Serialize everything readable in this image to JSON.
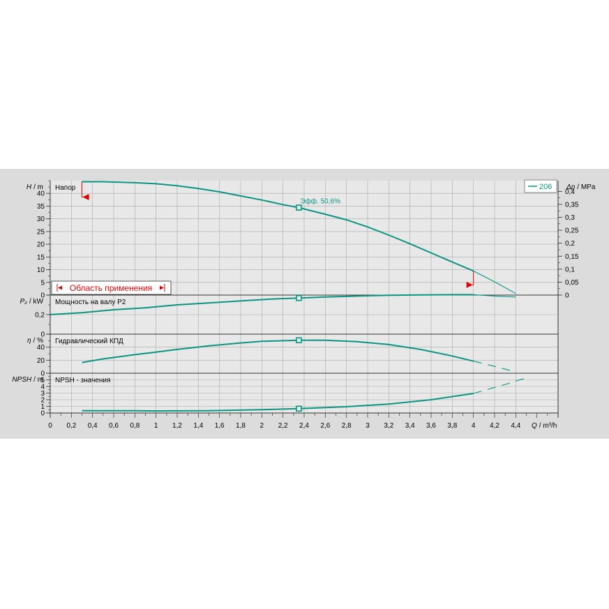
{
  "chart_data": {
    "type": "line",
    "colors": {
      "curve": "#0a9482",
      "range": "#e00000",
      "grid": "#a8a8a8",
      "background": "#dcdcdc",
      "plot": "#e8e8e8"
    },
    "legend": {
      "label": "206",
      "placement": "top-right"
    },
    "x_axis": {
      "label_symbol": "Q",
      "label_unit": "/ m³/h",
      "xlim": [
        0,
        4.8
      ],
      "ticks": [
        0,
        0.2,
        0.4,
        0.6,
        0.8,
        1,
        1.2,
        1.4,
        1.6,
        1.8,
        2,
        2.2,
        2.4,
        2.6,
        2.8,
        3,
        3.2,
        3.4,
        3.6,
        3.8,
        4,
        4.2,
        4.4
      ],
      "tick_labels": [
        "0",
        "0,2",
        "0,4",
        "0,6",
        "0,8",
        "1",
        "1,2",
        "1,4",
        "1,6",
        "1,8",
        "2",
        "2,2",
        "2,4",
        "2,6",
        "2,8",
        "3",
        "3,2",
        "3,4",
        "3,6",
        "3,8",
        "4",
        "4,2",
        "4,4"
      ]
    },
    "operating_point": {
      "x": 2.35,
      "label": "Эфф.  50,6%"
    },
    "application_range": {
      "label": "Область применения",
      "x_min": 0.3,
      "x_max": 4.0
    },
    "panels": [
      {
        "id": "head",
        "title": "Напор",
        "y_symbol": "H",
        "y_unit": "/ m",
        "ylim": [
          0,
          45
        ],
        "ticks": [
          0,
          5,
          10,
          15,
          20,
          25,
          30,
          35,
          40
        ],
        "tick_labels": [
          "0",
          "5",
          "10",
          "15",
          "20",
          "25",
          "30",
          "35",
          "40"
        ],
        "right_axis": {
          "symbol": "Δp",
          "unit": "/ MPa",
          "ticks": [
            0,
            0.05,
            0.1,
            0.15,
            0.2,
            0.25,
            0.3,
            0.35,
            0.4
          ],
          "tick_labels": [
            "0",
            "0,05",
            "0,1",
            "0,15",
            "0,2",
            "0,25",
            "0,3",
            "0,35",
            "0,4"
          ],
          "factor": 0.00980665
        },
        "series": [
          {
            "x": [
              0.3,
              0.5,
              0.8,
              1.0,
              1.2,
              1.4,
              1.6,
              1.8,
              2.0,
              2.2,
              2.35,
              2.6,
              2.8,
              3.0,
              3.2,
              3.4,
              3.6,
              3.8,
              4.0
            ],
            "y": [
              44.6,
              44.6,
              44.2,
              43.8,
              43.0,
              41.9,
              40.6,
              39.0,
              37.4,
              35.6,
              34.4,
              31.8,
              29.6,
              26.8,
              23.6,
              20.2,
              16.6,
              13.0,
              9.5
            ],
            "style": "solid"
          },
          {
            "x": [
              4.0,
              4.2,
              4.4
            ],
            "y": [
              9.5,
              5.2,
              0.6
            ],
            "style": "thin"
          }
        ]
      },
      {
        "id": "power",
        "title": "Мощность на валу P2",
        "y_symbol": "P₂",
        "y_unit": "/ kW",
        "ylim": [
          0,
          0.4
        ],
        "ticks": [
          0,
          0.2
        ],
        "tick_labels": [
          "0",
          "0,2"
        ],
        "series": [
          {
            "x": [
              0,
              0.3,
              0.6,
              0.9,
              1.2,
              1.5,
              1.8,
              2.1,
              2.35,
              2.6,
              2.9,
              3.2,
              3.5,
              3.8,
              4.0
            ],
            "y": [
              0.2,
              0.22,
              0.25,
              0.27,
              0.3,
              0.32,
              0.34,
              0.36,
              0.37,
              0.38,
              0.39,
              0.398,
              0.402,
              0.404,
              0.404
            ],
            "style": "solid"
          },
          {
            "x": [
              4.0,
              4.2,
              4.4
            ],
            "y": [
              0.404,
              0.39,
              0.38
            ],
            "style": "thin"
          }
        ]
      },
      {
        "id": "efficiency",
        "title": "Гидравлический КПД",
        "y_symbol": "η",
        "y_unit": "/ %",
        "ylim": [
          0,
          60
        ],
        "ticks": [
          0,
          20,
          40
        ],
        "tick_labels": [
          "0",
          "20",
          "40"
        ],
        "series": [
          {
            "x": [
              0.3,
              0.5,
              0.8,
              1.0,
              1.2,
              1.5,
              1.8,
              2.0,
              2.35,
              2.6,
              2.9,
              3.2,
              3.5,
              3.8,
              4.0
            ],
            "y": [
              16.5,
              22,
              28.5,
              32.5,
              36.5,
              42,
              46.5,
              49,
              50.6,
              50.6,
              48.5,
              44,
              36.5,
              26.5,
              18.5
            ],
            "style": "solid"
          },
          {
            "x": [
              4.0,
              4.2,
              4.4
            ],
            "y": [
              18.5,
              10.5,
              2.0
            ],
            "style": "dashed"
          }
        ]
      },
      {
        "id": "npsh",
        "title": "NPSH - значения",
        "y_symbol": "NPSH",
        "y_unit": "/ m",
        "ylim": [
          0,
          6
        ],
        "ticks": [
          0,
          1,
          2,
          3,
          4,
          5
        ],
        "tick_labels": [
          "0",
          "1",
          "2",
          "3",
          "4",
          "5"
        ],
        "series": [
          {
            "x": [
              0.3,
              0.8,
              1.0,
              1.5,
              2.0,
              2.35,
              2.8,
              3.2,
              3.6,
              4.0
            ],
            "y": [
              0.35,
              0.35,
              0.3,
              0.35,
              0.5,
              0.65,
              0.95,
              1.35,
              2.0,
              2.95
            ],
            "style": "solid"
          },
          {
            "x": [
              4.0,
              4.3,
              4.5
            ],
            "y": [
              2.95,
              4.3,
              5.3
            ],
            "style": "dashed"
          }
        ]
      }
    ]
  }
}
